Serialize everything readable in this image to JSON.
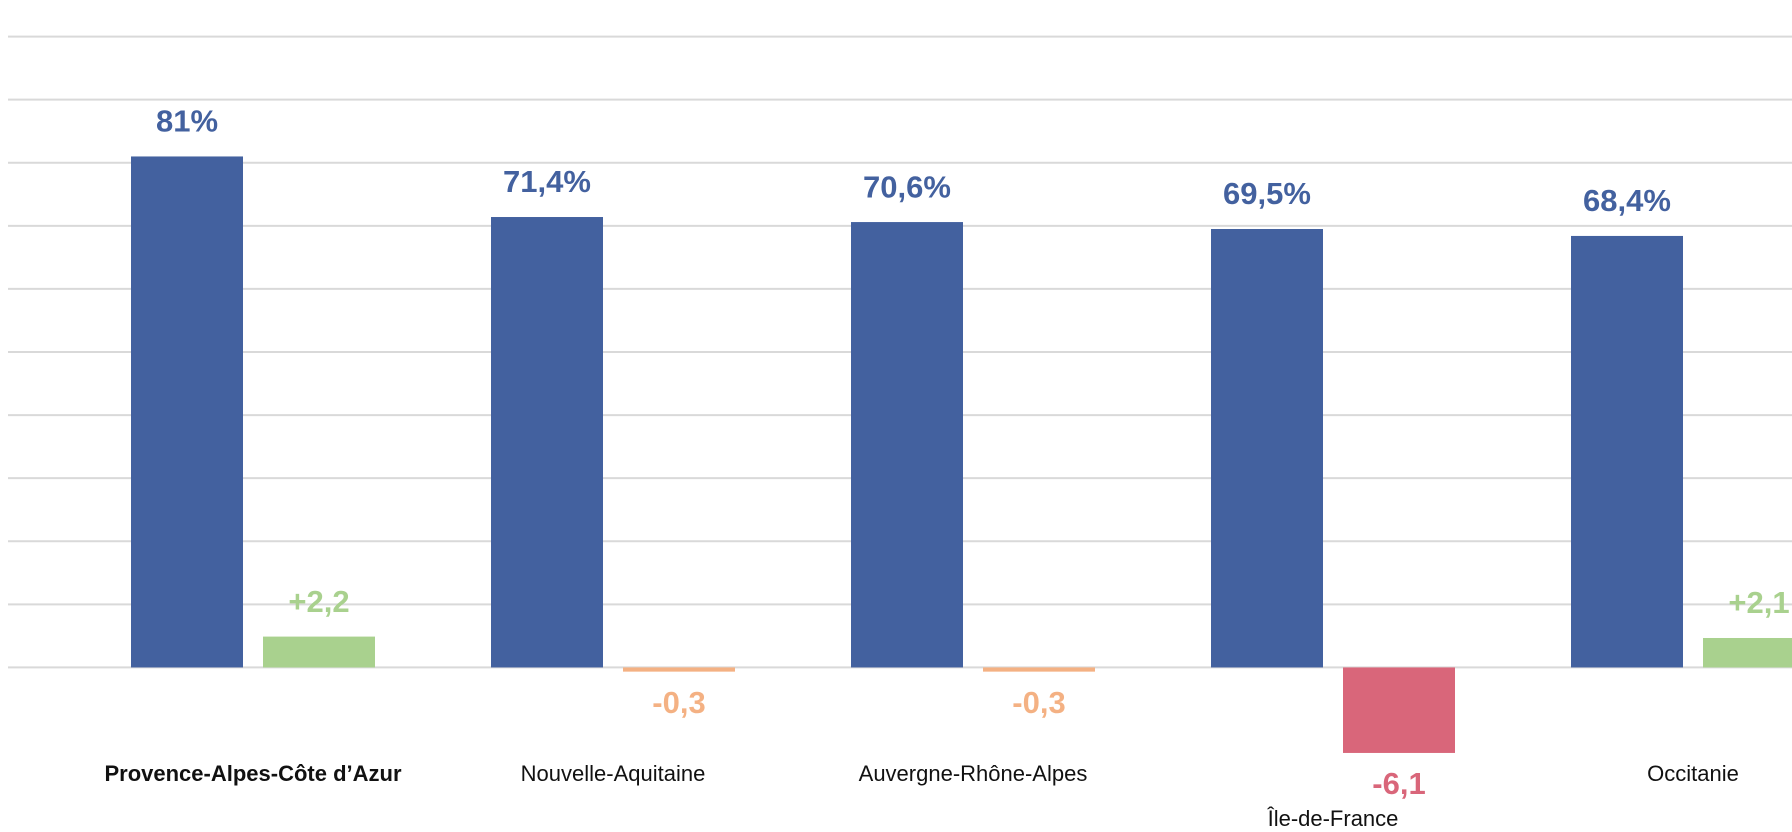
{
  "chart_data": {
    "type": "bar",
    "categories": [
      "Provence-Alpes-Côte d’Azur",
      "Nouvelle-Aquitaine",
      "Auvergne-Rhône-Alpes",
      "Île-de-France",
      "Occitanie"
    ],
    "highlight_category": 0,
    "series": [
      {
        "color": "#43619f",
        "values": [
          81,
          71.4,
          70.6,
          69.5,
          68.4
        ],
        "value_labels": [
          "81%",
          "71,4%",
          "70,6%",
          "69,5%",
          "68,4%"
        ]
      },
      {
        "axis": "y2",
        "colors": [
          "#a9d18e",
          "#f4b183",
          "#f4b183",
          "#d9667a",
          "#a9d18e"
        ],
        "values": [
          2.2,
          -0.3,
          -0.3,
          -6.1,
          2.1
        ],
        "value_labels": [
          "+2,2",
          "-0,3",
          "-0,3",
          "-6,1",
          "+2,1"
        ]
      }
    ],
    "ylim": [
      -20,
      100
    ],
    "yticks": [
      0,
      10,
      20,
      30,
      40,
      50,
      60,
      70,
      80,
      90,
      100
    ],
    "y2lim": [
      -9,
      45
    ],
    "grid": true
  }
}
